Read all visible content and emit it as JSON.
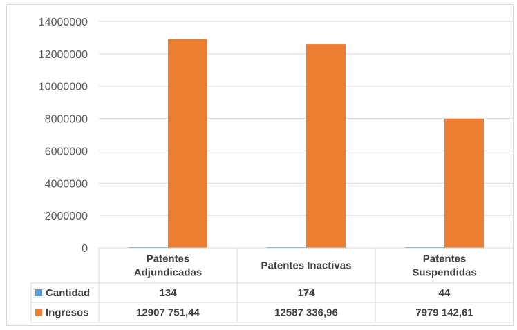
{
  "chart_data": {
    "type": "bar",
    "title": "",
    "xlabel": "",
    "ylabel": "",
    "ylim": [
      0,
      14000000
    ],
    "yticks": [
      "0",
      "2000000",
      "4000000",
      "6000000",
      "8000000",
      "10000000",
      "12000000",
      "14000000"
    ],
    "grid": true,
    "legend_placement": "data-table",
    "categories": [
      [
        "Patentes",
        "Adjundicadas"
      ],
      [
        "Patentes Inactivas"
      ],
      [
        "Patentes",
        "Suspendidas"
      ]
    ],
    "series": [
      {
        "name": "Cantidad",
        "color": "#5b9bd5",
        "values": [
          134,
          174,
          44
        ],
        "labels": [
          "134",
          "174",
          "44"
        ]
      },
      {
        "name": "Ingresos",
        "color": "#ed7d31",
        "values": [
          12907751.44,
          12587336.96,
          7979142.61
        ],
        "labels": [
          "12907 751,44",
          "12587 336,96",
          "7979 142,61"
        ]
      }
    ]
  }
}
